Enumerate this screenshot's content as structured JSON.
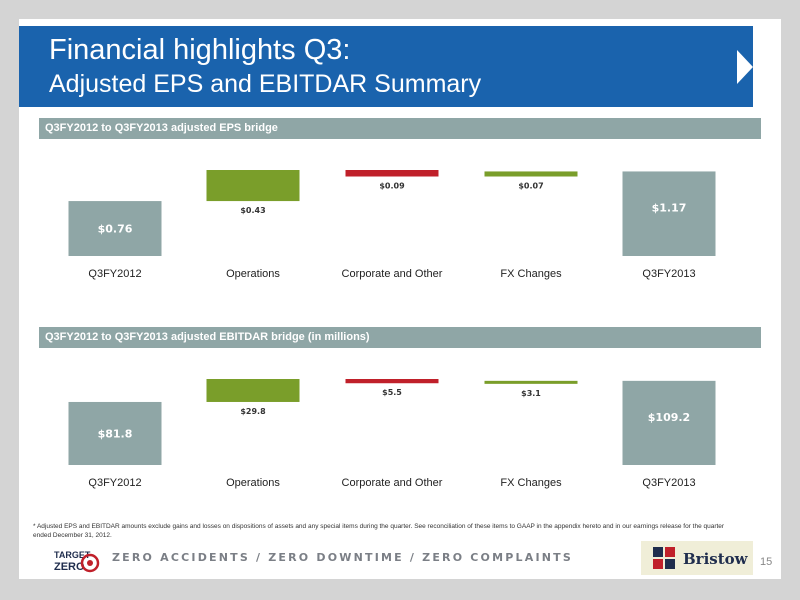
{
  "title": {
    "line1": "Financial highlights Q3:",
    "line2": "Adjusted EPS and EBITDAR Summary"
  },
  "colors": {
    "header_blue": "#1a63ad",
    "section_gray": "#8fa6a6",
    "bar_gray": "#8fa6a6",
    "bar_green": "#7a9e2a",
    "bar_red": "#c0202a"
  },
  "chart_data": [
    {
      "type": "bar",
      "title": "Q3FY2012 to Q3FY2013 adjusted EPS bridge",
      "categories": [
        "Q3FY2012",
        "Operations",
        "Corporate and Other",
        "FX Changes",
        "Q3FY2013"
      ],
      "values": [
        0.76,
        0.43,
        -0.09,
        0.07,
        1.17
      ],
      "labels": [
        "$0.76",
        "$0.43",
        "$0.09",
        "$0.07",
        "$1.17"
      ],
      "bar_kinds": [
        "total",
        "increase",
        "decrease",
        "increase",
        "total"
      ]
    },
    {
      "type": "bar",
      "title": "Q3FY2012 to Q3FY2013 adjusted EBITDAR bridge (in millions)",
      "categories": [
        "Q3FY2012",
        "Operations",
        "Corporate and Other",
        "FX Changes",
        "Q3FY2013"
      ],
      "values": [
        81.8,
        29.8,
        -5.5,
        3.1,
        109.2
      ],
      "labels": [
        "$81.8",
        "$29.8",
        "$5.5",
        "$3.1",
        "$109.2"
      ],
      "bar_kinds": [
        "total",
        "increase",
        "decrease",
        "increase",
        "total"
      ]
    }
  ],
  "footnote": "* Adjusted EPS and EBITDAR amounts exclude gains and losses on dispositions of assets and any special items during the quarter. See reconciliation of these items to GAAP in the appendix hereto and in our earnings release for the quarter ended December 31, 2012.",
  "footer": {
    "logo_text_line1": "TARGET",
    "logo_text_line2": "ZERO",
    "tagline": "ZERO ACCIDENTS / ZERO DOWNTIME / ZERO COMPLAINTS",
    "company": "Bristow",
    "page_number": "15"
  }
}
